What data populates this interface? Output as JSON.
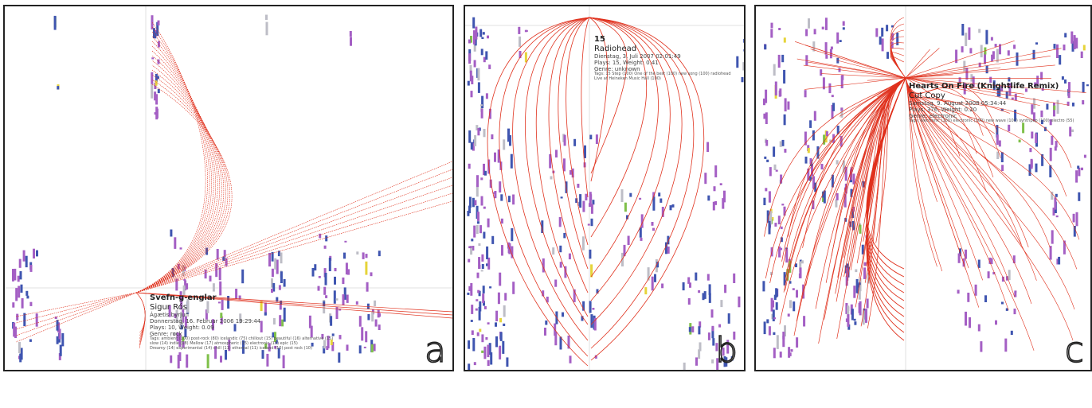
{
  "colors": {
    "arc": "#e0311d",
    "mark_purple": "#a45fc4",
    "mark_blue": "#3f55b0",
    "mark_gray": "#bdbdc6",
    "mark_green": "#7fc04a",
    "mark_yellow": "#e6d43a",
    "border": "#222222"
  },
  "chart_data": [
    {
      "type": "scatter",
      "panel": "a",
      "title": "",
      "info": {
        "song": "Svefn-g-englar",
        "artist": "Sigur Rós",
        "album": "Ágætis byrjun",
        "date": "Donnerstag, 16. Februar 2006 19:29:44",
        "plays_weight": "Plays: 10, Weight: 0.09",
        "genre": "Genre: rock",
        "tags": [
          "Tags: ambient (100) post-rock (80) icelandic (75) chillout (15) beautiful (16) alternative (15)",
          "slow (14) indie (18) Mellow (17) atmospheric (15) electronic (15) epic (15)",
          "Dreamy (14) experimental (14) chill (11) ethereal (11) iceland (10) post rock (10)"
        ]
      },
      "letter": "a"
    },
    {
      "type": "scatter",
      "panel": "b",
      "title": "",
      "info": {
        "song": "15",
        "artist": "Radiohead",
        "date": "Dienstag, 3. Juli 2007 02:01:49",
        "plays_weight": "Plays: 15, Weight: 0.41",
        "genre": "Genre: unknown",
        "tags": [
          "Tags: 15 Step (100) One of the best (100) new song (100) radiohead",
          "Live at Heineken Music Hall (100)"
        ]
      },
      "letter": "b"
    },
    {
      "type": "scatter",
      "panel": "c",
      "title": "",
      "info": {
        "song": "Hearts On Fire (Knightlife Remix)",
        "artist": "Cut Copy",
        "date": "Samstag, 9. August 2008 05:34:44",
        "plays_weight": "Plays: 376, Weight: 0.20",
        "genre": "Genre: electronic",
        "tags": [
          "Tags: electronic (100) electronic (100) new wave (100) synthpop (100) electro (55)"
        ]
      },
      "letter": "c"
    }
  ]
}
